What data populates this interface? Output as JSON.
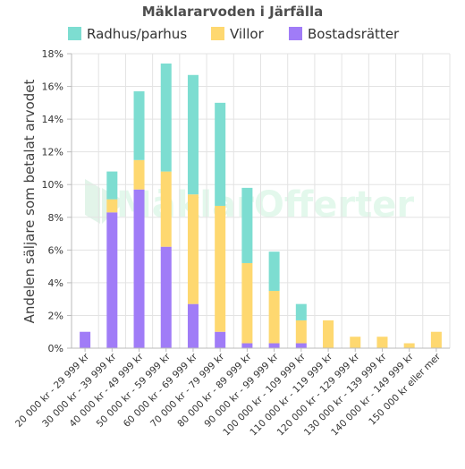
{
  "chart_data": {
    "type": "bar",
    "stacked": true,
    "title": "Mäklararvoden i Järfälla",
    "xlabel": "",
    "ylabel": "Andelen säljare som betalat arvodet",
    "ylim": [
      0,
      18
    ],
    "yticks": [
      0,
      2,
      4,
      6,
      8,
      10,
      12,
      14,
      16,
      18
    ],
    "ytick_suffix": "%",
    "grid": true,
    "legend_position": "top-center",
    "watermark": "MäklarOfferter",
    "categories": [
      "20 000 kr - 29 999 kr",
      "30 000 kr - 39 999 kr",
      "40 000 kr - 49 999 kr",
      "50 000 kr - 59 999 kr",
      "60 000 kr - 69 999 kr",
      "70 000 kr - 79 999 kr",
      "80 000 kr - 89 999 kr",
      "90 000 kr - 99 999 kr",
      "100 000 kr - 109 999 kr",
      "110 000 kr - 119 999 kr",
      "120 000 kr - 129 999 kr",
      "130 000 kr - 139 999 kr",
      "140 000 kr - 149 999 kr",
      "150 000 kr eller mer"
    ],
    "series": [
      {
        "name": "Bostadsrätter",
        "color": "#a07cf7",
        "values": [
          1.0,
          8.3,
          9.7,
          6.2,
          2.7,
          1.0,
          0.3,
          0.3,
          0.3,
          0,
          0,
          0,
          0,
          0
        ]
      },
      {
        "name": "Villor",
        "color": "#fed870",
        "values": [
          0,
          0.8,
          1.8,
          4.6,
          6.7,
          7.7,
          4.9,
          3.2,
          1.4,
          1.7,
          0.7,
          0.7,
          0.3,
          1.0
        ]
      },
      {
        "name": "Radhus/parhus",
        "color": "#7dddd1",
        "values": [
          0,
          1.7,
          4.2,
          6.6,
          7.3,
          6.3,
          4.6,
          2.4,
          1.0,
          0,
          0,
          0,
          0,
          0
        ]
      }
    ],
    "legend_order": [
      "Radhus/parhus",
      "Villor",
      "Bostadsrätter"
    ]
  }
}
